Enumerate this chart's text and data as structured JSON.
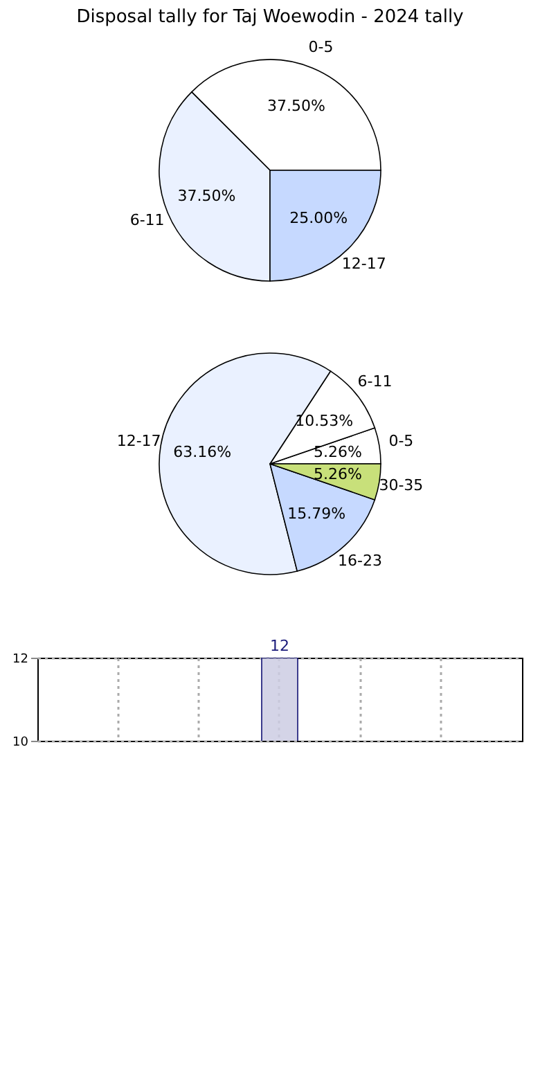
{
  "chart_data": [
    {
      "type": "pie",
      "title": "Disposal tally for Taj Woewodin - 2024 tally",
      "categories": [
        "0-5",
        "6-11",
        "12-17"
      ],
      "values": [
        37.5,
        37.5,
        25.0
      ],
      "value_labels": [
        "37.50%",
        "37.50%",
        "25.00%"
      ],
      "colors": [
        "#ffffff",
        "#eaf1ff",
        "#c6d9ff"
      ]
    },
    {
      "type": "pie",
      "categories": [
        "0-5",
        "6-11",
        "12-17",
        "16-23",
        "30-35"
      ],
      "values": [
        5.26,
        10.53,
        63.16,
        15.79,
        5.26
      ],
      "value_labels": [
        "5.26%",
        "10.53%",
        "63.16%",
        "15.79%",
        "5.26%"
      ],
      "colors": [
        "#ffffff",
        "#ffffff",
        "#eaf1ff",
        "#c6d9ff",
        "#c8e07a"
      ]
    },
    {
      "type": "bar",
      "categories": [
        null,
        null,
        null,
        null,
        null
      ],
      "values": [
        null,
        null,
        12,
        null,
        null
      ],
      "colors": [
        "#cdcde3",
        "#cdcde3",
        "#cdcde3",
        "#cdcde3",
        "#cdcde3"
      ],
      "ylim": [
        10,
        12
      ],
      "yticks": [
        10,
        12
      ],
      "grid": true,
      "data_labels": true,
      "tick_labels": "y"
    }
  ]
}
